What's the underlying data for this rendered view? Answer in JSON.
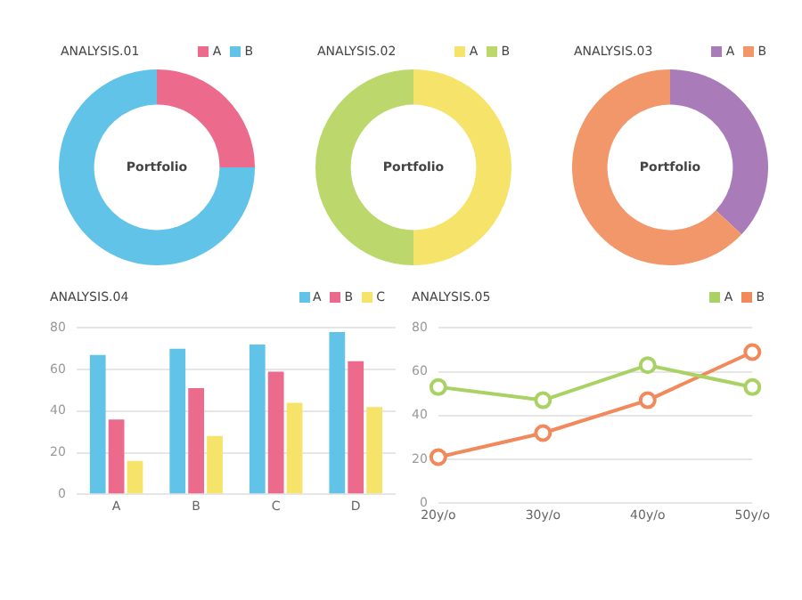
{
  "chart_data": [
    {
      "type": "donut",
      "title": "ANALYSIS.01",
      "categories": [
        "A",
        "B"
      ],
      "values": [
        25,
        75
      ],
      "colors": [
        "#ec6a8c",
        "#62c3e8"
      ],
      "legend": "top right",
      "annotations": [
        "Portfolio"
      ]
    },
    {
      "type": "donut",
      "title": "ANALYSIS.02",
      "categories": [
        "A",
        "B"
      ],
      "values": [
        50,
        50
      ],
      "colors": [
        "#f5e36a",
        "#bcd86c"
      ],
      "legend": "top right",
      "annotations": [
        "Portfolio"
      ]
    },
    {
      "type": "donut",
      "title": "ANALYSIS.03",
      "categories": [
        "A",
        "B"
      ],
      "values": [
        37,
        63
      ],
      "colors": [
        "#a97bb8",
        "#f2976a"
      ],
      "legend": "top right",
      "annotations": [
        "Portfolio"
      ]
    },
    {
      "type": "bar",
      "title": "ANALYSIS.04",
      "categories": [
        "A",
        "B",
        "C",
        "D"
      ],
      "series": [
        {
          "name": "A",
          "color": "#62c3e8",
          "values": [
            67,
            70,
            72,
            78
          ]
        },
        {
          "name": "B",
          "color": "#ec6a8c",
          "values": [
            36,
            51,
            59,
            64
          ]
        },
        {
          "name": "C",
          "color": "#f5e36a",
          "values": [
            16,
            28,
            44,
            42
          ]
        }
      ],
      "ylim": [
        0,
        80
      ],
      "yticks": [
        0,
        20,
        40,
        60,
        80
      ],
      "grid": "y",
      "legend": "top right"
    },
    {
      "type": "line",
      "title": "ANALYSIS.05",
      "categories": [
        "20y/o",
        "30y/o",
        "40y/o",
        "50y/o"
      ],
      "series": [
        {
          "name": "A",
          "color": "#a9d164",
          "values": [
            53,
            47,
            63,
            53
          ]
        },
        {
          "name": "B",
          "color": "#f2895a",
          "values": [
            21,
            32,
            47,
            69
          ]
        }
      ],
      "ylim": [
        0,
        80
      ],
      "yticks": [
        0,
        20,
        40,
        60,
        80
      ],
      "grid": "y",
      "legend": "top right",
      "marker": "circle",
      "line_style": "solid"
    }
  ]
}
